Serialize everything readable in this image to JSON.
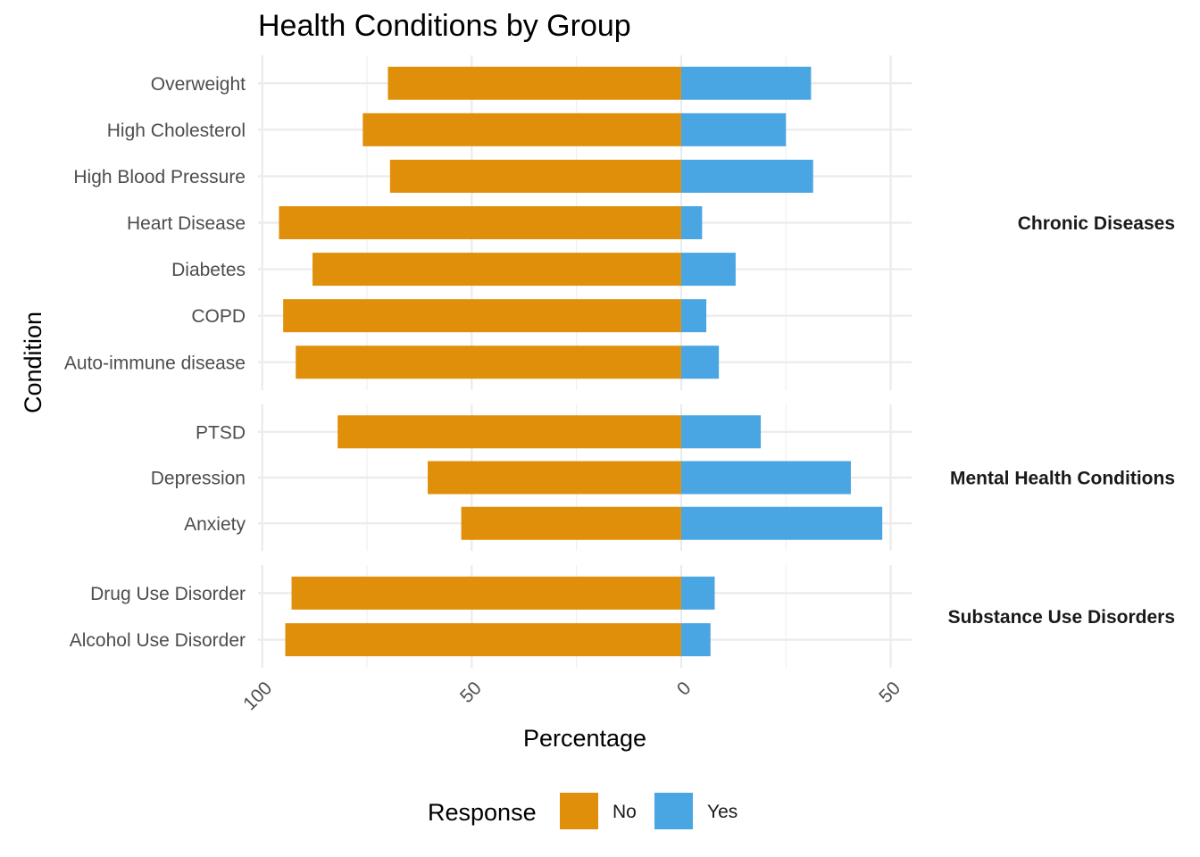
{
  "chart_data": {
    "type": "bar",
    "orientation": "horizontal-diverging",
    "title": "Health Conditions by Group",
    "xlabel": "Percentage",
    "ylabel": "Condition",
    "x_ticks": [
      "100",
      "50",
      "0",
      "50"
    ],
    "x_tick_values": [
      -100,
      -50,
      0,
      50
    ],
    "xlim": [
      -101,
      55
    ],
    "grid": true,
    "legend": {
      "title": "Response",
      "position": "bottom",
      "entries": [
        {
          "name": "No",
          "color": "#E08F0B"
        },
        {
          "name": "Yes",
          "color": "#4AA6E3"
        }
      ]
    },
    "groups": [
      {
        "name": "Chronic Diseases",
        "categories": [
          "Overweight",
          "High Cholesterol",
          "High Blood Pressure",
          "Heart Disease",
          "Diabetes",
          "COPD",
          "Auto-immune disease"
        ],
        "series": [
          {
            "name": "No",
            "values": [
              -70,
              -76,
              -69.5,
              -96,
              -88,
              -95,
              -92
            ]
          },
          {
            "name": "Yes",
            "values": [
              31,
              25,
              31.5,
              5,
              13,
              6,
              9
            ]
          }
        ]
      },
      {
        "name": "Mental Health Conditions",
        "categories": [
          "PTSD",
          "Depression",
          "Anxiety"
        ],
        "series": [
          {
            "name": "No",
            "values": [
              -82,
              -60.5,
              -52.5
            ]
          },
          {
            "name": "Yes",
            "values": [
              19,
              40.5,
              48
            ]
          }
        ]
      },
      {
        "name": "Substance Use Disorders",
        "categories": [
          "Drug Use Disorder",
          "Alcohol Use Disorder"
        ],
        "series": [
          {
            "name": "No",
            "values": [
              -93,
              -94.5
            ]
          },
          {
            "name": "Yes",
            "values": [
              8,
              7
            ]
          }
        ]
      }
    ]
  }
}
